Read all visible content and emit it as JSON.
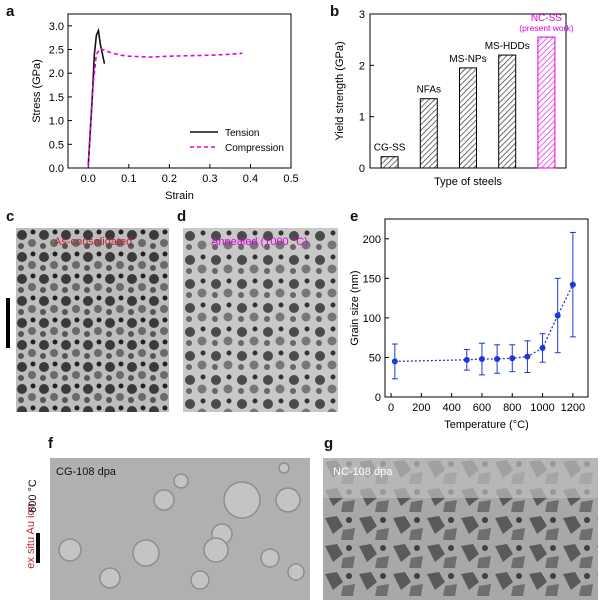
{
  "panel_labels": {
    "a": "a",
    "b": "b",
    "c": "c",
    "d": "d",
    "e": "e",
    "f": "f",
    "g": "g"
  },
  "colors": {
    "tension": "#111111",
    "compression": "#e000e0",
    "highlight": "#e000e0",
    "grain": "#1f37d6",
    "caption_red": "#c0242b"
  },
  "panel_c": {
    "caption": "As-consolidated"
  },
  "panel_d": {
    "caption": "Annealed (1000 °C)"
  },
  "panel_f": {
    "caption": "CG-108 dpa",
    "side_text_1": "ex situ Au ion",
    "side_text_2": "600 °C"
  },
  "panel_g": {
    "caption": "NC-108 dpa"
  },
  "chart_data": [
    {
      "id": "a",
      "type": "line",
      "xlabel": "Strain",
      "ylabel": "Stress (GPa)",
      "xlim": [
        -0.05,
        0.5
      ],
      "ylim": [
        0,
        3.25
      ],
      "xticks": [
        "0.0",
        "0.1",
        "0.2",
        "0.3",
        "0.4",
        "0.5"
      ],
      "yticks": [
        "0.0",
        "0.5",
        "1.0",
        "1.5",
        "2.0",
        "2.5",
        "3.0"
      ],
      "legend_position": "lower-right",
      "series": [
        {
          "name": "Tension",
          "style": "solid",
          "x": [
            0.0,
            0.01,
            0.015,
            0.02,
            0.025,
            0.03,
            0.04
          ],
          "y": [
            0.05,
            1.5,
            2.4,
            2.8,
            2.9,
            2.6,
            2.2
          ]
        },
        {
          "name": "Compression",
          "style": "dashed",
          "x": [
            0.0,
            0.01,
            0.02,
            0.03,
            0.05,
            0.08,
            0.1,
            0.15,
            0.2,
            0.25,
            0.3,
            0.35,
            0.38
          ],
          "y": [
            0.05,
            1.6,
            2.4,
            2.52,
            2.45,
            2.38,
            2.36,
            2.34,
            2.36,
            2.37,
            2.38,
            2.4,
            2.42
          ]
        }
      ]
    },
    {
      "id": "b",
      "type": "bar",
      "xlabel": "Type of steels",
      "ylabel": "Yield strength (GPa)",
      "ylim": [
        0,
        3
      ],
      "yticks": [
        "0",
        "1",
        "2",
        "3"
      ],
      "categories": [
        "CG-SS",
        "NFAs",
        "MS-NPs",
        "MS-HDDs",
        "NC-SS\n(present work)"
      ],
      "category_lines": [
        [
          "CG-SS"
        ],
        [
          "NFAs"
        ],
        [
          "MS-NPs"
        ],
        [
          "MS-HDDs"
        ],
        [
          "NC-SS",
          "(present work)"
        ]
      ],
      "values": [
        0.22,
        1.35,
        1.95,
        2.2,
        2.55
      ]
    },
    {
      "id": "e",
      "type": "scatter",
      "xlabel": "Temperature (°C)",
      "ylabel": "Grain size (nm)",
      "xlim": [
        -40,
        1300
      ],
      "ylim": [
        0,
        225
      ],
      "xticks": [
        "0",
        "200",
        "400",
        "600",
        "800",
        "1000",
        "1200"
      ],
      "yticks": [
        "0",
        "50",
        "100",
        "150",
        "200"
      ],
      "series": [
        {
          "x": [
            25,
            500,
            600,
            700,
            800,
            900,
            1000,
            1100,
            1200
          ],
          "y": [
            45,
            47,
            48,
            48,
            49,
            51,
            62,
            103,
            142
          ],
          "err": [
            22,
            13,
            20,
            18,
            17,
            20,
            18,
            47,
            66
          ]
        }
      ]
    }
  ]
}
